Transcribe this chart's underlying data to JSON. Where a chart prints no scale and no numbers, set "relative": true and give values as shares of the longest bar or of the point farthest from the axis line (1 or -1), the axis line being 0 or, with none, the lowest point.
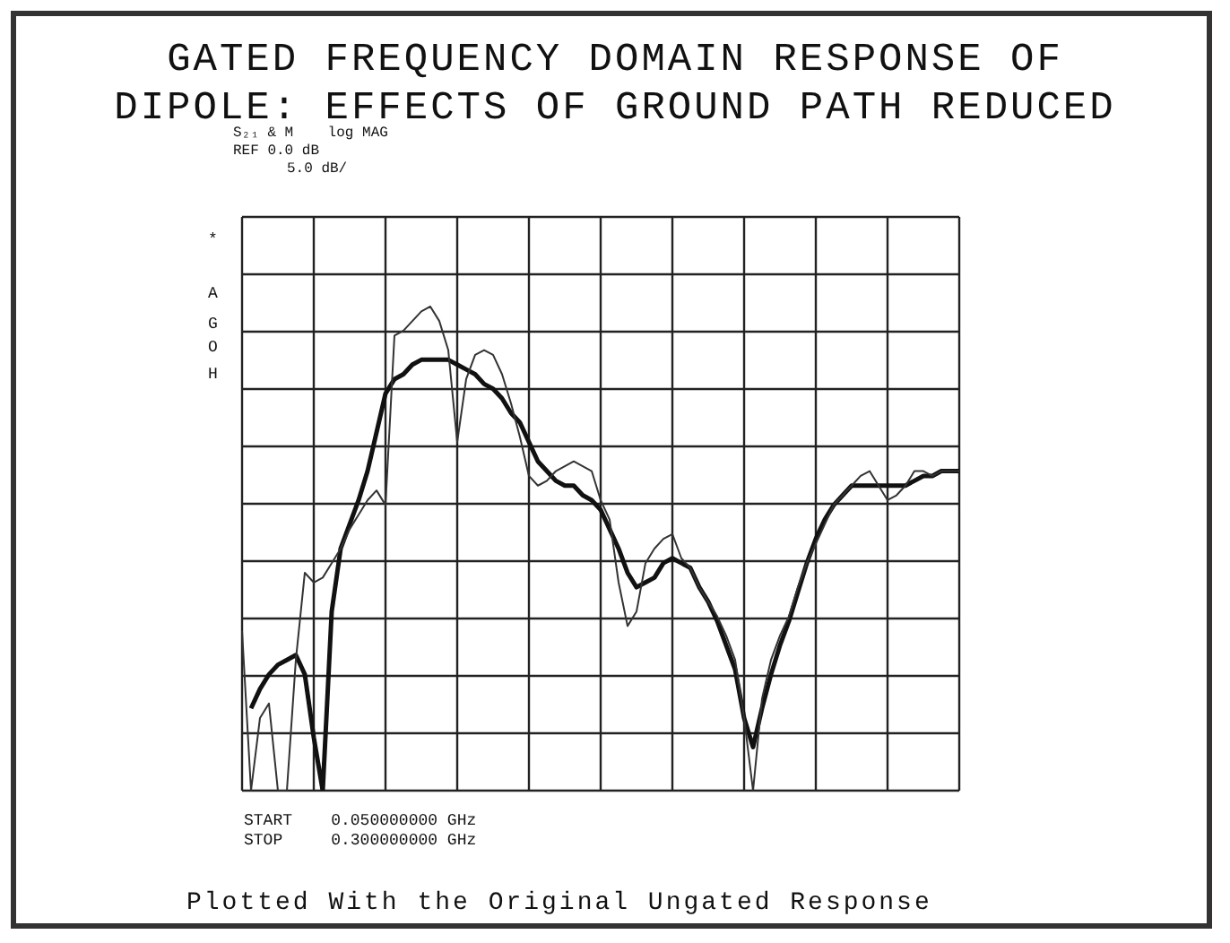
{
  "chart_data": {
    "type": "line",
    "relative": true,
    "grid": true,
    "legend": false,
    "marker": "none",
    "line_style": "solid",
    "title": "GATED FREQUENCY DOMAIN RESPONSE OF DIPOLE: EFFECTS OF GROUND PATH REDUCED",
    "annotations": [
      "S₂₁ & M    log MAG",
      "REF 0.0 dB",
      "5.0 dB/",
      "*",
      "A",
      "G",
      "O",
      "H",
      "START    0.050000000 GHz",
      "STOP     0.300000000 GHz",
      "Plotted With the Original Ungated Response"
    ],
    "categories": [
      null,
      null,
      null,
      null,
      null,
      null,
      null,
      null,
      null,
      null,
      null,
      null,
      null,
      null,
      null,
      null,
      null,
      null,
      null,
      null,
      null,
      null,
      null,
      null,
      null,
      null,
      null,
      null,
      null,
      null,
      null,
      null,
      null,
      null,
      null,
      null,
      null,
      null,
      null,
      null,
      null,
      null,
      null,
      null,
      null,
      null,
      null,
      null,
      null,
      null,
      null,
      null,
      null,
      null,
      null,
      null,
      null,
      null,
      null,
      null,
      null,
      null,
      null,
      null,
      null,
      null,
      null,
      null,
      null,
      null,
      null,
      null,
      null,
      null,
      null,
      null,
      null,
      null,
      null,
      null,
      null
    ],
    "series": [
      {
        "color": "#333333",
        "values": [
          0.33,
          0,
          0.15,
          0.18,
          0,
          0,
          0.27,
          0.45,
          0.43,
          0.44,
          0.47,
          0.5,
          0.54,
          0.57,
          0.6,
          0.62,
          0.59,
          0.94,
          0.95,
          0.97,
          0.99,
          1,
          0.97,
          0.91,
          0.72,
          0.85,
          0.9,
          0.91,
          0.9,
          0.86,
          0.8,
          0.73,
          0.65,
          0.63,
          0.64,
          0.66,
          0.67,
          0.68,
          0.67,
          0.66,
          0.6,
          0.56,
          0.43,
          0.34,
          0.37,
          0.47,
          0.5,
          0.52,
          0.53,
          0.48,
          0.46,
          0.42,
          0.39,
          0.36,
          0.32,
          0.27,
          0.15,
          0,
          0.19,
          0.27,
          0.32,
          0.36,
          0.42,
          0.47,
          0.51,
          0.55,
          0.59,
          0.61,
          0.63,
          0.65,
          0.66,
          0.63,
          0.6,
          0.61,
          0.63,
          0.66,
          0.66,
          0.65,
          0.66,
          0.66,
          0.66
        ]
      },
      {
        "color": "#111111",
        "values": [
          null,
          0.17,
          0.21,
          0.24,
          0.26,
          0.27,
          0.28,
          0.24,
          0.11,
          0,
          0.37,
          0.5,
          0.55,
          0.6,
          0.66,
          0.74,
          0.82,
          0.85,
          0.86,
          0.88,
          0.89,
          0.89,
          0.89,
          0.89,
          0.88,
          0.87,
          0.86,
          0.84,
          0.83,
          0.81,
          0.78,
          0.76,
          0.72,
          0.68,
          0.66,
          0.64,
          0.63,
          0.63,
          0.61,
          0.6,
          0.58,
          0.54,
          0.5,
          0.45,
          0.42,
          0.43,
          0.44,
          0.47,
          0.48,
          0.47,
          0.46,
          0.42,
          0.39,
          0.35,
          0.3,
          0.25,
          0.15,
          0.09,
          0.17,
          0.24,
          0.3,
          0.35,
          0.41,
          0.47,
          0.52,
          0.56,
          0.59,
          0.61,
          0.63,
          0.63,
          0.63,
          0.63,
          0.63,
          0.63,
          0.63,
          0.64,
          0.65,
          0.65,
          0.66,
          0.66,
          0.66
        ]
      }
    ]
  }
}
